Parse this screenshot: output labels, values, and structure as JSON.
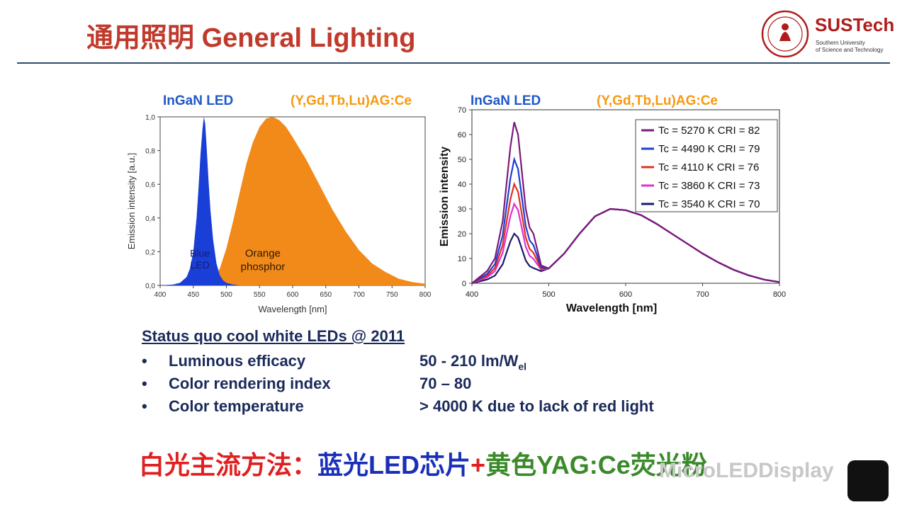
{
  "slide": {
    "title_cn": "通用照明",
    "title_en": "General Lighting",
    "logo_name": "SUSTech",
    "logo_sub1": "Southern University",
    "logo_sub2": "of Science and Technology"
  },
  "colors": {
    "blue_led": "#1a3fd6",
    "orange_phosphor": "#f28a1a",
    "title_red": "#c0392b"
  },
  "chart_data": [
    {
      "type": "area",
      "head_left": "InGaN LED",
      "head_right": "(Y,Gd,Tb,Lu)AG:Ce",
      "xlabel": "Wavelength [nm]",
      "ylabel": "Emission intensity [a.u.]",
      "xlim": [
        400,
        800
      ],
      "ylim": [
        0,
        1.0
      ],
      "xticks": [
        "400",
        "450",
        "500",
        "550",
        "600",
        "650",
        "700",
        "750",
        "800"
      ],
      "yticks": [
        "0,0",
        "0,2",
        "0,4",
        "0,6",
        "0,8",
        "1,0"
      ],
      "series": [
        {
          "name": "Blue LED",
          "label_line1": "Blue",
          "label_line2": "LED",
          "x": [
            400,
            420,
            430,
            440,
            445,
            450,
            455,
            458,
            461,
            464,
            466,
            468,
            470,
            473,
            476,
            480,
            485,
            490,
            495,
            500,
            510,
            520
          ],
          "y": [
            0,
            0.005,
            0.015,
            0.05,
            0.1,
            0.2,
            0.4,
            0.58,
            0.78,
            0.93,
            1.0,
            0.96,
            0.83,
            0.62,
            0.44,
            0.27,
            0.13,
            0.06,
            0.03,
            0.015,
            0.005,
            0
          ]
        },
        {
          "name": "Orange phosphor",
          "label_line1": "Orange",
          "label_line2": "phosphor",
          "x": [
            470,
            480,
            490,
            500,
            510,
            520,
            530,
            540,
            550,
            560,
            570,
            580,
            590,
            600,
            620,
            640,
            660,
            680,
            700,
            720,
            740,
            760,
            780,
            800
          ],
          "y": [
            0,
            0.03,
            0.1,
            0.22,
            0.38,
            0.55,
            0.72,
            0.85,
            0.94,
            0.99,
            1.0,
            0.98,
            0.94,
            0.88,
            0.75,
            0.6,
            0.45,
            0.32,
            0.21,
            0.13,
            0.08,
            0.04,
            0.02,
            0.01
          ]
        }
      ]
    },
    {
      "type": "line",
      "head_left": "InGaN LED",
      "head_right": "(Y,Gd,Tb,Lu)AG:Ce",
      "xlabel": "Wavelength [nm]",
      "ylabel": "Emission intensity",
      "xlim": [
        400,
        800
      ],
      "ylim": [
        0,
        70
      ],
      "xticks": [
        "400",
        "500",
        "600",
        "700",
        "800"
      ],
      "yticks": [
        "0",
        "10",
        "20",
        "30",
        "40",
        "50",
        "60",
        "70"
      ],
      "legend_position": "top-right",
      "x": [
        400,
        420,
        430,
        440,
        445,
        450,
        455,
        460,
        465,
        470,
        475,
        480,
        490,
        500,
        520,
        540,
        560,
        580,
        600,
        620,
        640,
        660,
        680,
        700,
        720,
        740,
        760,
        780,
        800
      ],
      "base": [
        0,
        1,
        2,
        5,
        8,
        11,
        13,
        12,
        9,
        6,
        4.5,
        4,
        4.5,
        6,
        12,
        20,
        27,
        30,
        29.5,
        27.5,
        24,
        20,
        16,
        12,
        8.5,
        5.5,
        3.2,
        1.5,
        0.5
      ],
      "series": [
        {
          "name": "Tc = 5270 K CRI = 82",
          "color": "#7b1a7b",
          "peak": 65
        },
        {
          "name": "Tc = 4490 K CRI = 79",
          "color": "#1f3fd0",
          "peak": 50
        },
        {
          "name": "Tc = 4110 K CRI = 76",
          "color": "#e03020",
          "peak": 40
        },
        {
          "name": "Tc = 3860 K CRI = 73",
          "color": "#e030d0",
          "peak": 32
        },
        {
          "name": "Tc = 3540 K CRI = 70",
          "color": "#1a1a6a",
          "peak": 20
        }
      ]
    }
  ],
  "status": {
    "title": "Status quo cool white LEDs @ 2011",
    "bullet": "•",
    "rows": [
      {
        "label": "Luminous efficacy",
        "value": "50 - 210 lm/W",
        "sub": "el"
      },
      {
        "label": "Color rendering index",
        "value": "70 – 80",
        "sub": ""
      },
      {
        "label": "Color temperature",
        "value": "> 4000 K due to lack of red light",
        "sub": ""
      }
    ]
  },
  "bottom": {
    "part1": "白光主流方法：",
    "part2": "蓝光LED芯片",
    "plus": "+",
    "part3": "黄色YAG:Ce荧光粉"
  },
  "watermark": "MicroLEDDisplay"
}
